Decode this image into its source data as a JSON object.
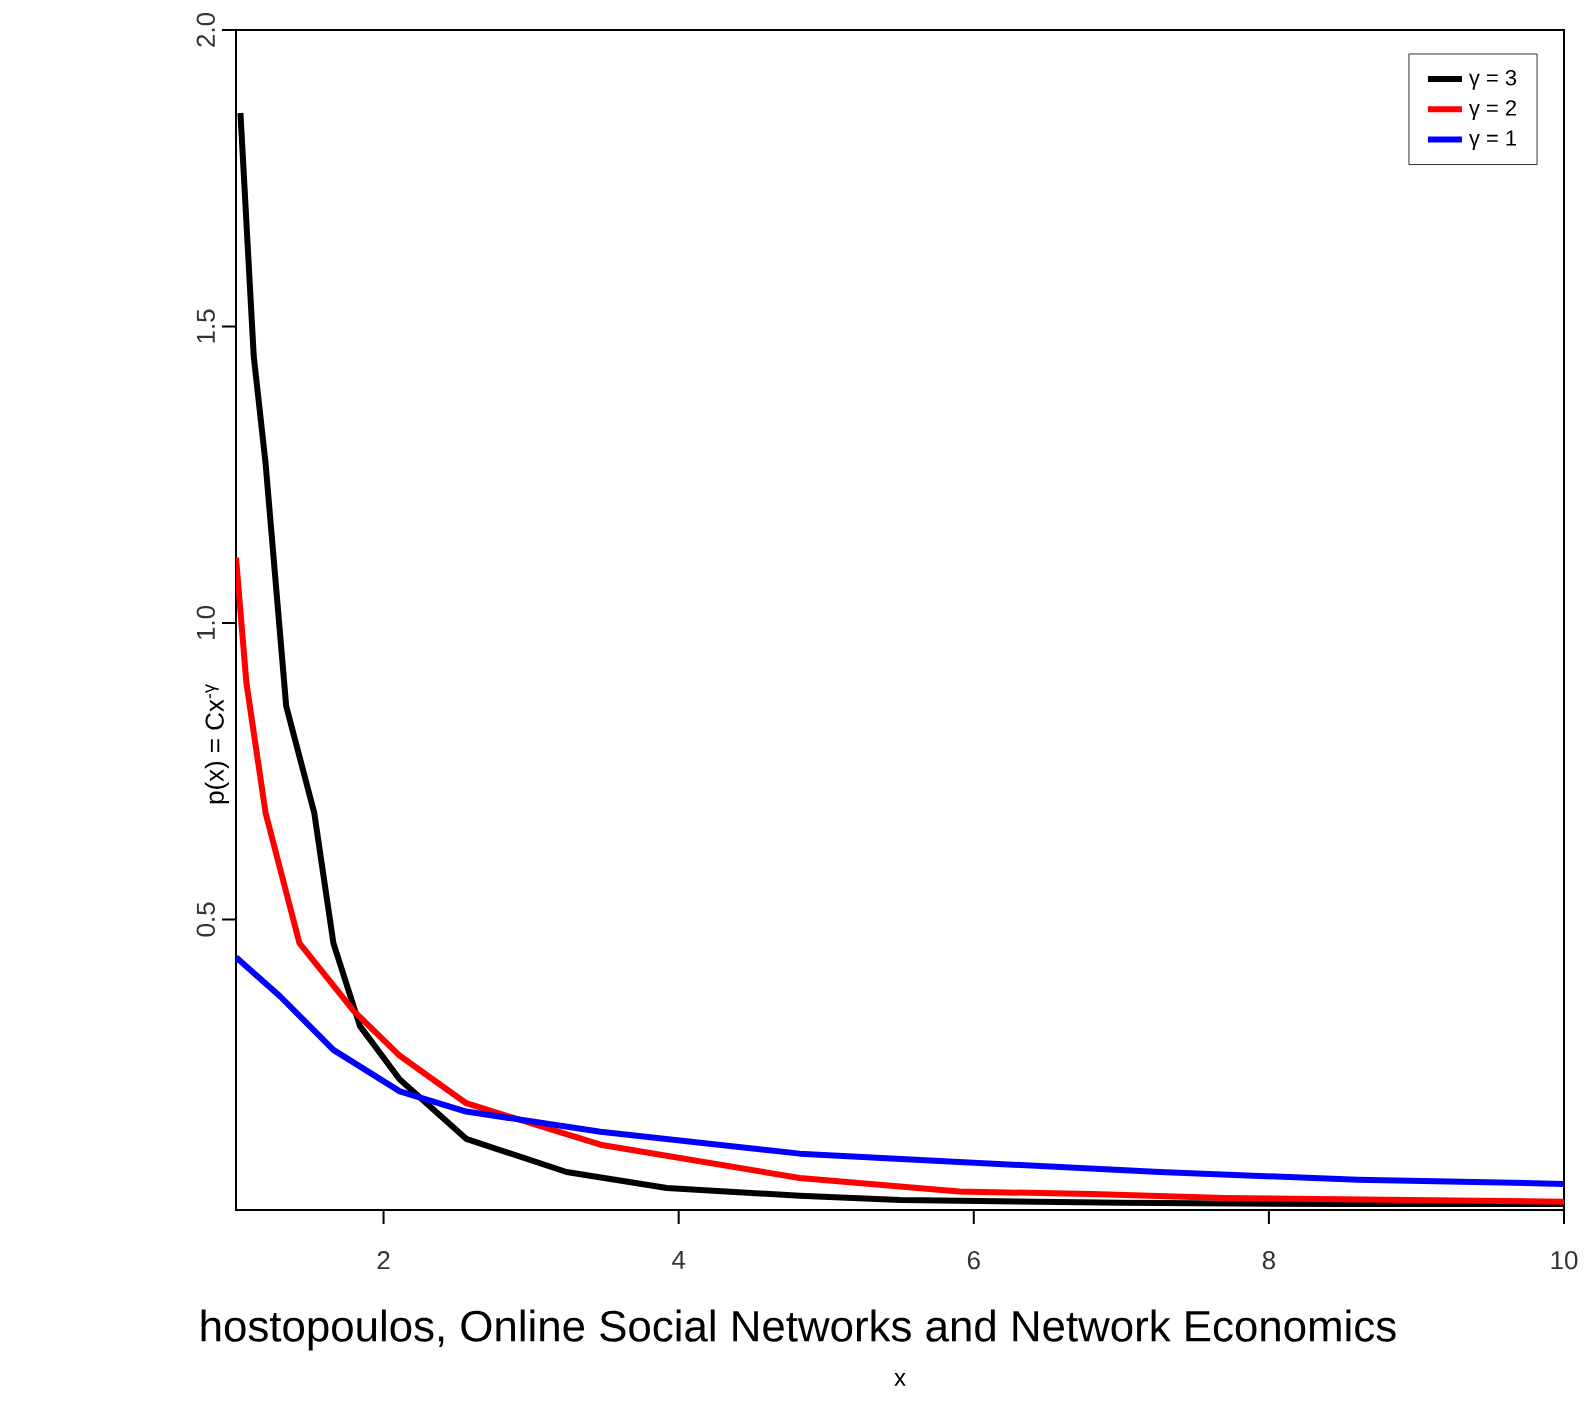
{
  "chart_data": {
    "type": "line",
    "xlabel": "x",
    "ylabel": "p(x) = Cx$^{-γ}$",
    "annotations": [
      "hostopoulos, Online Social Networks and Network Economics"
    ],
    "xlim": [
      1,
      10
    ],
    "ylim": [
      0.01,
      2.0
    ],
    "xticks": [
      2,
      4,
      6,
      8,
      10
    ],
    "yticks": [
      0.5,
      {
        "value": 1.0,
        "label": "1.0"
      },
      1.5,
      {
        "value": 2.0,
        "label": "2.0"
      }
    ],
    "legend": "top right",
    "series": [
      {
        "name": "γ = 3",
        "color": "#000000",
        "x": [
          1.03,
          1.12,
          1.2,
          1.34,
          1.53,
          1.66,
          1.84,
          2.11,
          2.56,
          3.24,
          3.92,
          4.82,
          5.5,
          7.0,
          8.5,
          10
        ],
        "values": [
          1.86,
          1.45,
          1.27,
          0.86,
          0.68,
          0.46,
          0.32,
          0.23,
          0.13,
          0.074,
          0.047,
          0.034,
          0.027,
          0.022,
          0.02,
          0.02
        ]
      },
      {
        "name": "γ = 2",
        "color": "#ff0000",
        "x": [
          1.0,
          1.07,
          1.2,
          1.43,
          1.8,
          2.11,
          2.56,
          3.47,
          4.82,
          5.9,
          6.8,
          7.7,
          10
        ],
        "values": [
          1.11,
          0.9,
          0.68,
          0.46,
          0.345,
          0.27,
          0.19,
          0.12,
          0.064,
          0.041,
          0.037,
          0.03,
          0.024
        ]
      },
      {
        "name": "γ = 1",
        "color": "#0000ff",
        "x": [
          1.0,
          1.3,
          1.66,
          2.11,
          2.56,
          3.47,
          4.82,
          5.9,
          7.26,
          8.6,
          10
        ],
        "values": [
          0.436,
          0.37,
          0.28,
          0.21,
          0.176,
          0.142,
          0.105,
          0.091,
          0.074,
          0.061,
          0.054
        ]
      }
    ]
  }
}
